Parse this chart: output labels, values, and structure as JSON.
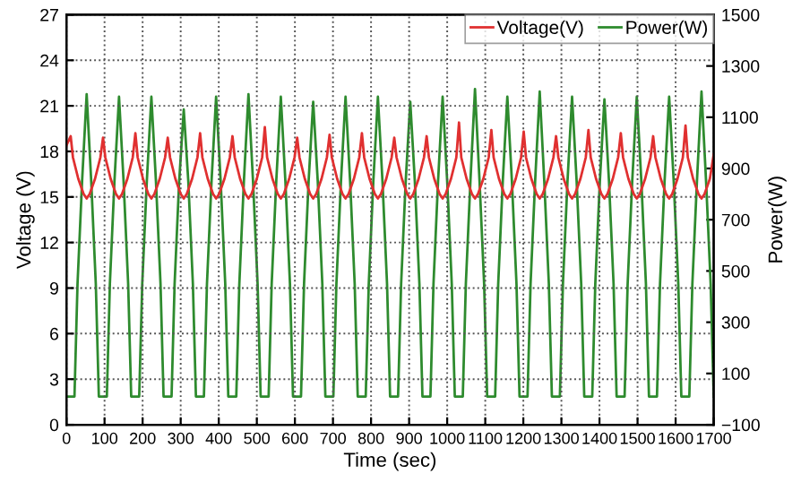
{
  "chart_data": {
    "type": "line",
    "xlabel": "Time (sec)",
    "ylabel": "Voltage (V)",
    "y2label": "Power(W)",
    "xlim": [
      0,
      1700
    ],
    "xticks": [
      0,
      100,
      200,
      300,
      400,
      500,
      600,
      700,
      800,
      900,
      1000,
      1100,
      1200,
      1300,
      1400,
      1500,
      1600,
      1700
    ],
    "ylim": [
      0,
      27
    ],
    "yticks": [
      0,
      3,
      6,
      9,
      12,
      15,
      18,
      21,
      24,
      27
    ],
    "y2lim": [
      -100,
      1500
    ],
    "y2ticks": [
      -100,
      100,
      300,
      500,
      700,
      900,
      1100,
      1300,
      1500
    ],
    "grid": true,
    "legend": "top right",
    "line_style": "solid",
    "marker": "none",
    "series": [
      {
        "name": "Voltage(V)",
        "color": "#e03030",
        "x": [
          0,
          11,
          17,
          31,
          45,
          53,
          61,
          75,
          89,
          96,
          102,
          116,
          130,
          138,
          146,
          160,
          174,
          181,
          187,
          201,
          215,
          223,
          231,
          245,
          259,
          266,
          272,
          286,
          300,
          308,
          316,
          330,
          344,
          351,
          357,
          371,
          385,
          393,
          401,
          415,
          429,
          436,
          442,
          456,
          470,
          478,
          486,
          500,
          514,
          521,
          527,
          541,
          555,
          563,
          571,
          585,
          599,
          606,
          612,
          626,
          640,
          648,
          656,
          670,
          684,
          691,
          697,
          711,
          725,
          733,
          741,
          755,
          769,
          776,
          782,
          796,
          810,
          818,
          826,
          840,
          854,
          861,
          867,
          881,
          895,
          903,
          911,
          925,
          939,
          946,
          952,
          966,
          980,
          988,
          996,
          1010,
          1024,
          1031,
          1037,
          1051,
          1065,
          1073,
          1081,
          1095,
          1109,
          1116,
          1122,
          1136,
          1150,
          1158,
          1166,
          1180,
          1194,
          1201,
          1207,
          1221,
          1235,
          1243,
          1251,
          1265,
          1279,
          1286,
          1292,
          1306,
          1320,
          1328,
          1336,
          1350,
          1364,
          1371,
          1377,
          1391,
          1405,
          1413,
          1421,
          1435,
          1449,
          1456,
          1462,
          1476,
          1490,
          1498,
          1506,
          1520,
          1534,
          1541,
          1547,
          1561,
          1575,
          1583,
          1591,
          1605,
          1619,
          1626,
          1632,
          1646,
          1660,
          1668,
          1676,
          1690,
          1700
        ],
        "values": [
          18.4,
          19.0,
          17.6,
          16.2,
          15.2,
          14.9,
          15.2,
          16.2,
          17.6,
          18.9,
          17.6,
          16.2,
          15.2,
          14.9,
          15.2,
          16.2,
          17.6,
          19.2,
          17.6,
          16.2,
          15.2,
          14.9,
          15.2,
          16.2,
          17.6,
          18.9,
          17.6,
          16.2,
          15.2,
          14.9,
          15.2,
          16.2,
          17.6,
          19.2,
          17.6,
          16.2,
          15.2,
          14.9,
          15.2,
          16.2,
          17.6,
          19.0,
          17.6,
          16.2,
          15.2,
          14.9,
          15.2,
          16.2,
          17.6,
          19.6,
          17.6,
          16.2,
          15.2,
          14.9,
          15.2,
          16.2,
          17.6,
          18.9,
          17.6,
          16.2,
          15.2,
          14.9,
          15.2,
          16.2,
          17.6,
          19.1,
          17.6,
          16.2,
          15.2,
          14.9,
          15.2,
          16.2,
          17.6,
          19.2,
          17.6,
          16.2,
          15.2,
          14.9,
          15.2,
          16.2,
          17.6,
          18.9,
          17.6,
          16.2,
          15.2,
          14.9,
          15.2,
          16.2,
          17.6,
          19.0,
          17.6,
          16.2,
          15.2,
          14.9,
          15.2,
          16.2,
          17.6,
          19.9,
          17.6,
          16.2,
          15.2,
          14.9,
          15.2,
          16.2,
          17.6,
          19.4,
          17.6,
          16.2,
          15.2,
          14.9,
          15.2,
          16.2,
          17.6,
          19.3,
          17.6,
          16.2,
          15.2,
          14.9,
          15.2,
          16.2,
          17.6,
          19.0,
          17.6,
          16.2,
          15.2,
          14.9,
          15.2,
          16.2,
          17.6,
          19.4,
          17.6,
          16.2,
          15.2,
          14.9,
          15.2,
          16.2,
          17.6,
          19.2,
          17.6,
          16.2,
          15.2,
          14.9,
          15.2,
          16.2,
          17.6,
          19.0,
          17.6,
          16.2,
          15.2,
          14.9,
          15.2,
          16.2,
          17.6,
          19.7,
          17.6,
          16.2,
          15.2,
          14.9,
          15.2,
          16.2,
          17.8
        ]
      },
      {
        "name": "Power(W)",
        "color": "#2e8b2e",
        "axis": "y2",
        "x": [
          0,
          13,
          21,
          29,
          41,
          53,
          65,
          77,
          85,
          98,
          106,
          114,
          126,
          138,
          150,
          162,
          170,
          183,
          191,
          199,
          211,
          223,
          235,
          247,
          255,
          268,
          276,
          284,
          296,
          308,
          320,
          332,
          340,
          353,
          361,
          369,
          381,
          393,
          405,
          417,
          425,
          438,
          446,
          454,
          466,
          478,
          490,
          502,
          510,
          523,
          531,
          539,
          551,
          563,
          575,
          587,
          595,
          608,
          616,
          624,
          636,
          648,
          660,
          672,
          680,
          693,
          701,
          709,
          721,
          733,
          745,
          757,
          765,
          778,
          786,
          794,
          806,
          818,
          830,
          842,
          850,
          863,
          871,
          879,
          891,
          903,
          915,
          927,
          935,
          948,
          956,
          964,
          976,
          988,
          1000,
          1012,
          1020,
          1033,
          1041,
          1049,
          1061,
          1073,
          1085,
          1097,
          1105,
          1118,
          1126,
          1134,
          1146,
          1158,
          1170,
          1182,
          1190,
          1203,
          1211,
          1219,
          1231,
          1243,
          1255,
          1267,
          1275,
          1288,
          1296,
          1304,
          1316,
          1328,
          1340,
          1352,
          1360,
          1373,
          1381,
          1389,
          1401,
          1413,
          1425,
          1437,
          1445,
          1458,
          1466,
          1474,
          1486,
          1498,
          1510,
          1522,
          1530,
          1543,
          1551,
          1559,
          1571,
          1583,
          1595,
          1607,
          1615,
          1628,
          1636,
          1644,
          1656,
          1668,
          1680,
          1692,
          1700
        ],
        "values": [
          10,
          10,
          10,
          450,
          850,
          1190,
          850,
          450,
          10,
          10,
          10,
          450,
          850,
          1180,
          850,
          450,
          10,
          10,
          10,
          450,
          850,
          1180,
          850,
          450,
          10,
          10,
          10,
          450,
          850,
          1130,
          850,
          450,
          10,
          10,
          10,
          450,
          850,
          1180,
          850,
          450,
          10,
          10,
          10,
          450,
          850,
          1190,
          850,
          450,
          10,
          10,
          10,
          450,
          850,
          1180,
          850,
          450,
          10,
          10,
          10,
          450,
          850,
          1160,
          850,
          450,
          10,
          10,
          10,
          450,
          850,
          1180,
          850,
          450,
          10,
          10,
          10,
          450,
          850,
          1180,
          850,
          450,
          10,
          10,
          10,
          450,
          850,
          1160,
          850,
          450,
          10,
          10,
          10,
          450,
          850,
          1180,
          850,
          450,
          10,
          10,
          10,
          450,
          850,
          1210,
          850,
          450,
          10,
          10,
          10,
          450,
          850,
          1180,
          850,
          450,
          10,
          10,
          10,
          450,
          850,
          1200,
          850,
          450,
          10,
          10,
          10,
          450,
          850,
          1180,
          850,
          450,
          10,
          10,
          10,
          450,
          850,
          1170,
          850,
          450,
          10,
          10,
          10,
          450,
          850,
          1180,
          850,
          450,
          10,
          10,
          10,
          450,
          850,
          1180,
          850,
          450,
          10,
          10,
          10,
          450,
          850,
          1200,
          850,
          450,
          10
        ]
      }
    ]
  }
}
